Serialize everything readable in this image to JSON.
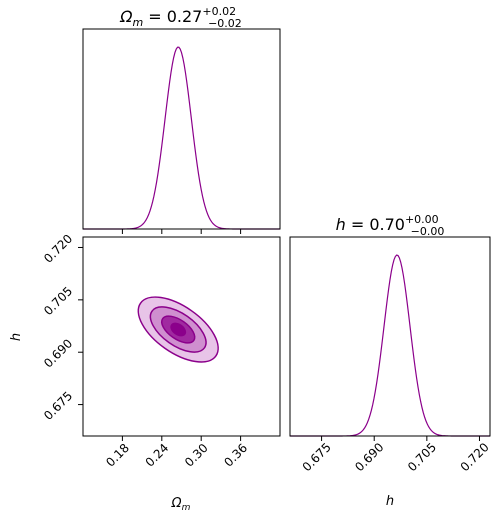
{
  "colors": {
    "main": "#8b008b",
    "fill_light": "#e8c4e8",
    "fill_mid": "#cf8fcf",
    "fill_dark": "#a02aa0"
  },
  "chart_data": [
    {
      "type": "line",
      "panel": "omega_m-marginal",
      "title": {
        "prefix": "Ω",
        "sub": "m",
        "eq": " = 0.27",
        "sup": "+0.02",
        "inf": "−0.02"
      },
      "xlim": [
        0.12,
        0.42
      ],
      "peak": 0.265,
      "sigma": 0.02,
      "xticks": [
        0.18,
        0.24,
        0.3,
        0.36
      ]
    },
    {
      "type": "scatter",
      "panel": "joint-contours",
      "subtype": "2d-credible-contours",
      "xlim": [
        0.12,
        0.42
      ],
      "ylim": [
        0.666,
        0.723
      ],
      "center": [
        0.265,
        0.6965
      ],
      "xticks": [
        0.18,
        0.24,
        0.3,
        0.36
      ],
      "yticks": [
        0.675,
        0.69,
        0.705,
        0.72
      ],
      "xtick_labels": [
        "0.18",
        "0.24",
        "0.30",
        "0.36"
      ],
      "ytick_labels": [
        "0.675",
        "0.690",
        "0.705",
        "0.720"
      ],
      "xlabel": {
        "base": "Ω",
        "sub": "m"
      },
      "ylabel": "h"
    },
    {
      "type": "line",
      "panel": "h-marginal",
      "title": {
        "prefix": "h",
        "eq": " = 0.70",
        "sup": "+0.00",
        "inf": "−0.00"
      },
      "xlim": [
        0.666,
        0.723
      ],
      "peak": 0.6965,
      "sigma": 0.0037,
      "xticks": [
        0.675,
        0.69,
        0.705,
        0.72
      ],
      "xtick_labels": [
        "0.675",
        "0.690",
        "0.705",
        "0.720"
      ],
      "xlabel": "h"
    }
  ]
}
